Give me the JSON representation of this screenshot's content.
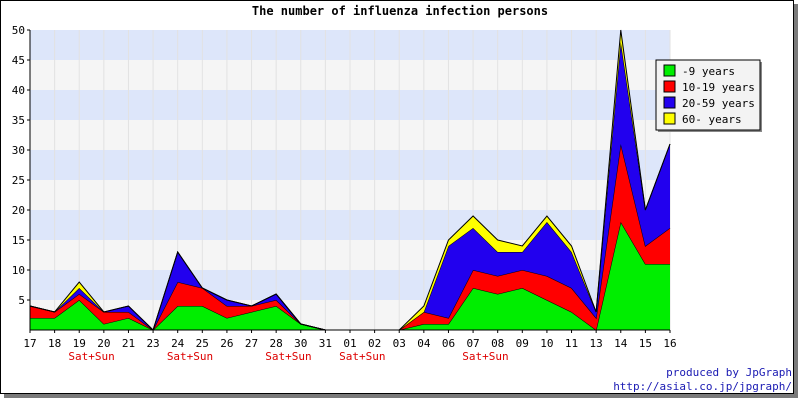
{
  "chart_data": {
    "type": "area",
    "stacked": true,
    "title": "The number of influenza infection persons",
    "xlabel": "",
    "ylabel": "",
    "ylim": [
      0,
      50
    ],
    "yticks": [
      5,
      10,
      15,
      20,
      25,
      30,
      35,
      40,
      45,
      50
    ],
    "categories": [
      "17",
      "18",
      "19",
      "20",
      "21",
      "23",
      "24",
      "25",
      "26",
      "27",
      "28",
      "30",
      "31",
      "01",
      "02",
      "03",
      "04",
      "06",
      "07",
      "08",
      "09",
      "10",
      "11",
      "13",
      "14",
      "15",
      "16"
    ],
    "weekend_label": "Sat+Sun",
    "weekend_after": [
      "19",
      "24",
      "28",
      "01",
      "07"
    ],
    "legend_position": "top-right",
    "series": [
      {
        "name": "-9 years",
        "color": "#00ee00",
        "values": [
          2,
          2,
          5,
          1,
          2,
          0,
          4,
          4,
          2,
          3,
          4,
          1,
          0,
          0,
          0,
          0,
          1,
          1,
          7,
          6,
          7,
          5,
          3,
          0,
          18,
          11,
          11
        ]
      },
      {
        "name": "10-19 years",
        "color": "#ff0000",
        "values": [
          2,
          1,
          1,
          2,
          1,
          0,
          4,
          3,
          2,
          1,
          1,
          0,
          0,
          0,
          0,
          0,
          2,
          1,
          3,
          3,
          3,
          4,
          4,
          2,
          13,
          3,
          6
        ]
      },
      {
        "name": "20-59 years",
        "color": "#2200ee",
        "values": [
          0,
          0,
          1,
          0,
          1,
          0,
          5,
          0,
          1,
          0,
          1,
          0,
          0,
          0,
          0,
          0,
          0,
          12,
          7,
          4,
          3,
          9,
          6,
          1,
          17,
          6,
          14
        ]
      },
      {
        "name": "60- years",
        "color": "#ffff00",
        "values": [
          0,
          0,
          1,
          0,
          0,
          0,
          0,
          0,
          0,
          0,
          0,
          0,
          0,
          0,
          0,
          0,
          1,
          1,
          2,
          2,
          1,
          1,
          1,
          0,
          2,
          0,
          0
        ]
      }
    ]
  },
  "credits": {
    "line1": "produced by JpGraph",
    "line2": "http://asial.co.jp/jpgraph/"
  }
}
